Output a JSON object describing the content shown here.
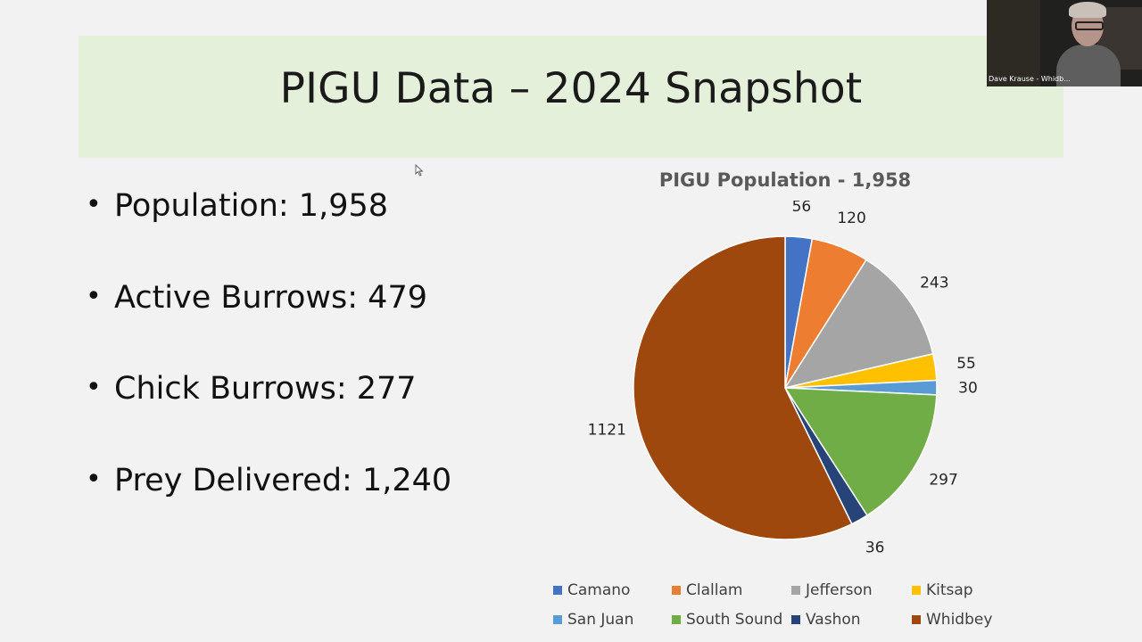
{
  "slide": {
    "title": "PIGU Data – 2024 Snapshot",
    "bullets": [
      {
        "text": "Population: 1,958"
      },
      {
        "text": "Active Burrows: 479"
      },
      {
        "text": "Chick Burrows: 277"
      },
      {
        "text": "Prey Delivered: 1,240"
      }
    ],
    "bullet_glyph": "•"
  },
  "chart_data": {
    "type": "pie",
    "title": "PIGU Population - 1,958",
    "categories": [
      "Camano",
      "Clallam",
      "Jefferson",
      "Kitsap",
      "San Juan",
      "South Sound",
      "Vashon",
      "Whidbey"
    ],
    "values": [
      56,
      120,
      243,
      55,
      30,
      297,
      36,
      1121
    ],
    "colors": [
      "#4472c4",
      "#ed7d31",
      "#a5a5a5",
      "#ffc000",
      "#5b9bd5",
      "#70ad47",
      "#264478",
      "#9e480e"
    ],
    "legend": "bottom"
  },
  "webcam": {
    "participant_label": "Dave Krause - Whidb..."
  },
  "icons": {
    "cursor": "mouse-pointer-icon"
  }
}
